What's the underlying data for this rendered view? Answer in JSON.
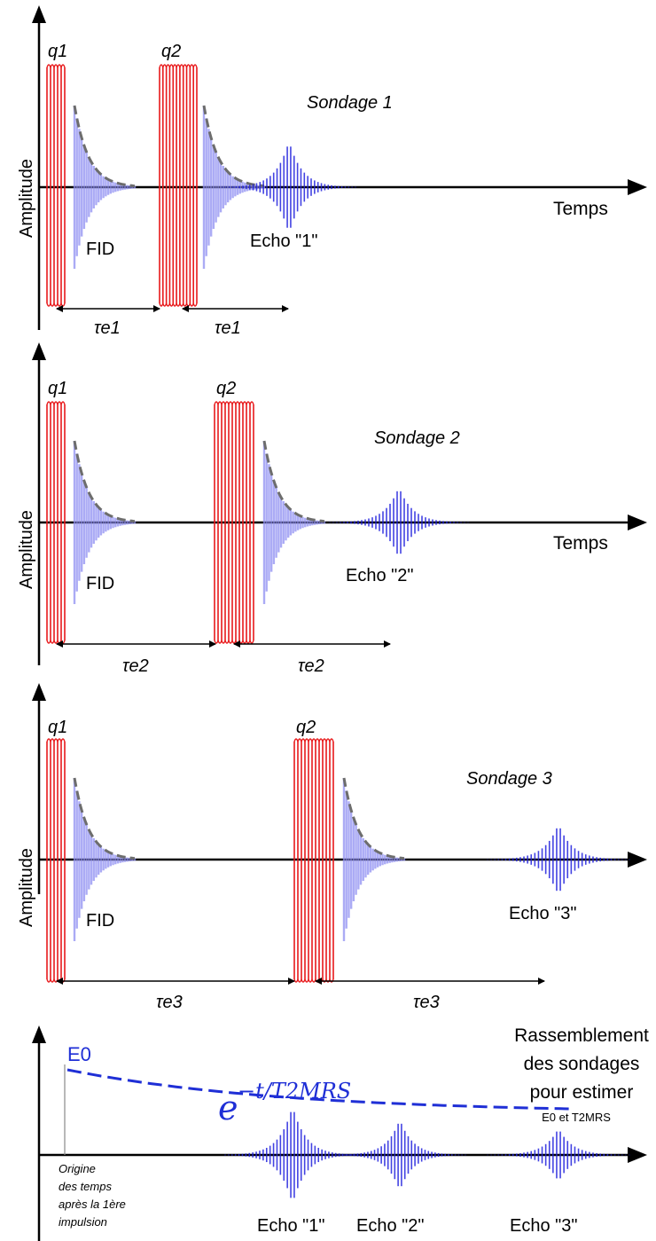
{
  "panels": [
    {
      "ylabel": "Amplitude",
      "xlabel": "Temps",
      "title": "Sondage 1",
      "pulse1_label": "q1",
      "pulse2_label": "q2",
      "fid_label": "FID",
      "echo_label": "Echo \"1\"",
      "te_labels": [
        "τe1",
        "τe1"
      ]
    },
    {
      "ylabel": "Amplitude",
      "xlabel": "Temps",
      "title": "Sondage 2",
      "pulse1_label": "q1",
      "pulse2_label": "q2",
      "fid_label": "FID",
      "echo_label": "Echo \"2\"",
      "te_labels": [
        "τe2",
        "τe2"
      ]
    },
    {
      "ylabel": "Amplitude",
      "xlabel": "",
      "title": "Sondage 3",
      "pulse1_label": "q1",
      "pulse2_label": "q2",
      "fid_label": "FID",
      "echo_label": "Echo \"3\"",
      "te_labels": [
        "τe3",
        "τe3"
      ]
    }
  ],
  "summary": {
    "e0_label": "E0",
    "formula_base": "e",
    "formula_exponent": "−t/T2MRS",
    "caption_lines": [
      "Rassemblement",
      "des sondages",
      "pour estimer",
      "E0 et T2MRS"
    ],
    "origin_lines": [
      "Origine",
      "des temps",
      "après la 1ère",
      "impulsion"
    ],
    "echo_labels": [
      "Echo \"1\"",
      "Echo \"2\"",
      "Echo \"3\""
    ]
  },
  "colors": {
    "pulse": "#e8191b",
    "fid": "#8f8ff2",
    "echo": "#2222dd",
    "envelope": "#6d6d6d",
    "decay_curve": "#1f2fd6",
    "axis": "#000000"
  }
}
